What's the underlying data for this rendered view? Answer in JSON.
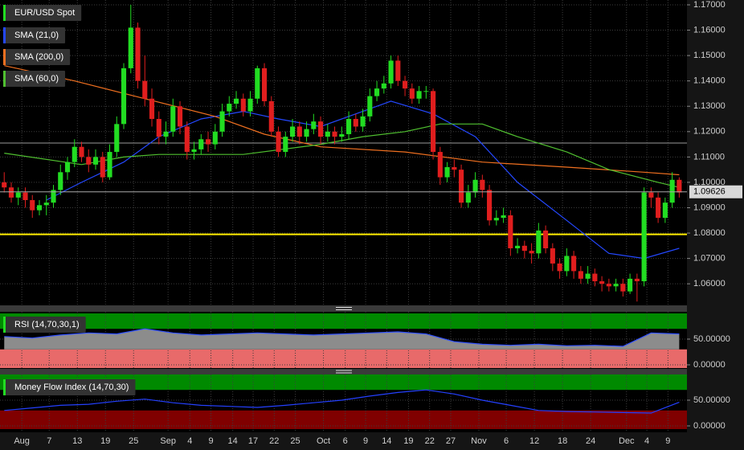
{
  "chart_data": [
    {
      "type": "candlestick",
      "name": "EUR/USD Spot",
      "color_up": "#22dd22",
      "color_down": "#e01e1e",
      "legend_color": "#22dd22",
      "xlim": [
        -0.6,
        97.1
      ],
      "xticks": [
        {
          "value": 2.5,
          "label": "Aug"
        },
        {
          "value": 6.4,
          "label": "7"
        },
        {
          "value": 10.4,
          "label": "13"
        },
        {
          "value": 14.4,
          "label": "19"
        },
        {
          "value": 18.4,
          "label": "25"
        },
        {
          "value": 23.3,
          "label": "Sep"
        },
        {
          "value": 26.4,
          "label": "4"
        },
        {
          "value": 29.4,
          "label": "9"
        },
        {
          "value": 32.5,
          "label": "14"
        },
        {
          "value": 35.4,
          "label": "17"
        },
        {
          "value": 38.4,
          "label": "22"
        },
        {
          "value": 41.4,
          "label": "25"
        },
        {
          "value": 45.4,
          "label": "Oct"
        },
        {
          "value": 48.5,
          "label": "6"
        },
        {
          "value": 51.4,
          "label": "9"
        },
        {
          "value": 54.4,
          "label": "14"
        },
        {
          "value": 57.5,
          "label": "19"
        },
        {
          "value": 60.5,
          "label": "22"
        },
        {
          "value": 63.5,
          "label": "27"
        },
        {
          "value": 67.5,
          "label": "Nov"
        },
        {
          "value": 71.4,
          "label": "6"
        },
        {
          "value": 75.4,
          "label": "12"
        },
        {
          "value": 79.4,
          "label": "18"
        },
        {
          "value": 83.4,
          "label": "24"
        },
        {
          "value": 88.5,
          "label": "Dec"
        },
        {
          "value": 91.4,
          "label": "4"
        },
        {
          "value": 94.4,
          "label": "9"
        }
      ],
      "ylim": [
        1.0515,
        1.1719
      ],
      "yticks": [
        {
          "value": 1.17,
          "label": "1.17000"
        },
        {
          "value": 1.16,
          "label": "1.16000"
        },
        {
          "value": 1.15,
          "label": "1.15000"
        },
        {
          "value": 1.14,
          "label": "1.14000"
        },
        {
          "value": 1.13,
          "label": "1.13000"
        },
        {
          "value": 1.12,
          "label": "1.12000"
        },
        {
          "value": 1.11,
          "label": "1.11000"
        },
        {
          "value": 1.1,
          "label": "1.10000"
        },
        {
          "value": 1.09,
          "label": "1.09000"
        },
        {
          "value": 1.08,
          "label": "1.08000"
        },
        {
          "value": 1.07,
          "label": "1.07000"
        },
        {
          "value": 1.06,
          "label": "1.06000"
        }
      ],
      "grid": true,
      "ohlc": [
        [
          1.1,
          1.104,
          1.096,
          1.098
        ],
        [
          1.098,
          1.1,
          1.092,
          1.094
        ],
        [
          1.094,
          1.098,
          1.091,
          1.096
        ],
        [
          1.096,
          1.098,
          1.09,
          1.093
        ],
        [
          1.093,
          1.095,
          1.086,
          1.089
        ],
        [
          1.089,
          1.093,
          1.087,
          1.091
        ],
        [
          1.091,
          1.095,
          1.087,
          1.092
        ],
        [
          1.092,
          1.099,
          1.09,
          1.097
        ],
        [
          1.097,
          1.107,
          1.095,
          1.104
        ],
        [
          1.104,
          1.11,
          1.101,
          1.108
        ],
        [
          1.108,
          1.117,
          1.106,
          1.114
        ],
        [
          1.114,
          1.116,
          1.108,
          1.11
        ],
        [
          1.11,
          1.113,
          1.104,
          1.107
        ],
        [
          1.107,
          1.113,
          1.105,
          1.11
        ],
        [
          1.11,
          1.112,
          1.1,
          1.102
        ],
        [
          1.102,
          1.115,
          1.101,
          1.112
        ],
        [
          1.112,
          1.126,
          1.11,
          1.123
        ],
        [
          1.123,
          1.147,
          1.121,
          1.145
        ],
        [
          1.145,
          1.17,
          1.143,
          1.161
        ],
        [
          1.161,
          1.163,
          1.137,
          1.14
        ],
        [
          1.14,
          1.15,
          1.13,
          1.133
        ],
        [
          1.133,
          1.137,
          1.122,
          1.125
        ],
        [
          1.125,
          1.128,
          1.115,
          1.118
        ],
        [
          1.118,
          1.124,
          1.115,
          1.12
        ],
        [
          1.12,
          1.133,
          1.118,
          1.13
        ],
        [
          1.13,
          1.132,
          1.119,
          1.122
        ],
        [
          1.122,
          1.124,
          1.109,
          1.112
        ],
        [
          1.112,
          1.116,
          1.109,
          1.113
        ],
        [
          1.113,
          1.119,
          1.111,
          1.117
        ],
        [
          1.117,
          1.12,
          1.112,
          1.115
        ],
        [
          1.115,
          1.123,
          1.113,
          1.12
        ],
        [
          1.12,
          1.131,
          1.118,
          1.128
        ],
        [
          1.128,
          1.134,
          1.126,
          1.131
        ],
        [
          1.131,
          1.136,
          1.129,
          1.133
        ],
        [
          1.133,
          1.135,
          1.126,
          1.128
        ],
        [
          1.128,
          1.136,
          1.126,
          1.133
        ],
        [
          1.133,
          1.146,
          1.131,
          1.145
        ],
        [
          1.145,
          1.147,
          1.13,
          1.132
        ],
        [
          1.132,
          1.134,
          1.118,
          1.12
        ],
        [
          1.12,
          1.122,
          1.11,
          1.112
        ],
        [
          1.112,
          1.12,
          1.11,
          1.118
        ],
        [
          1.118,
          1.125,
          1.116,
          1.122
        ],
        [
          1.122,
          1.124,
          1.115,
          1.118
        ],
        [
          1.118,
          1.124,
          1.116,
          1.121
        ],
        [
          1.121,
          1.127,
          1.119,
          1.124
        ],
        [
          1.124,
          1.126,
          1.115,
          1.118
        ],
        [
          1.118,
          1.123,
          1.116,
          1.12
        ],
        [
          1.12,
          1.122,
          1.115,
          1.118
        ],
        [
          1.118,
          1.122,
          1.116,
          1.119
        ],
        [
          1.119,
          1.128,
          1.117,
          1.125
        ],
        [
          1.125,
          1.127,
          1.12,
          1.122
        ],
        [
          1.122,
          1.129,
          1.12,
          1.126
        ],
        [
          1.126,
          1.137,
          1.124,
          1.134
        ],
        [
          1.134,
          1.14,
          1.132,
          1.137
        ],
        [
          1.137,
          1.142,
          1.135,
          1.139
        ],
        [
          1.139,
          1.15,
          1.137,
          1.148
        ],
        [
          1.148,
          1.15,
          1.138,
          1.14
        ],
        [
          1.14,
          1.142,
          1.134,
          1.137
        ],
        [
          1.137,
          1.139,
          1.131,
          1.133
        ],
        [
          1.133,
          1.138,
          1.131,
          1.136
        ],
        [
          1.136,
          1.138,
          1.133,
          1.136
        ],
        [
          1.136,
          1.137,
          1.109,
          1.112
        ],
        [
          1.112,
          1.114,
          1.099,
          1.102
        ],
        [
          1.102,
          1.108,
          1.1,
          1.106
        ],
        [
          1.106,
          1.109,
          1.102,
          1.105
        ],
        [
          1.105,
          1.107,
          1.09,
          1.092
        ],
        [
          1.092,
          1.099,
          1.09,
          1.096
        ],
        [
          1.096,
          1.104,
          1.094,
          1.101
        ],
        [
          1.101,
          1.103,
          1.094,
          1.097
        ],
        [
          1.097,
          1.099,
          1.083,
          1.085
        ],
        [
          1.085,
          1.089,
          1.083,
          1.086
        ],
        [
          1.086,
          1.09,
          1.084,
          1.087
        ],
        [
          1.087,
          1.089,
          1.071,
          1.074
        ],
        [
          1.074,
          1.078,
          1.072,
          1.075
        ],
        [
          1.075,
          1.077,
          1.07,
          1.073
        ],
        [
          1.073,
          1.076,
          1.068,
          1.072
        ],
        [
          1.072,
          1.084,
          1.07,
          1.081
        ],
        [
          1.081,
          1.083,
          1.072,
          1.074
        ],
        [
          1.074,
          1.076,
          1.065,
          1.068
        ],
        [
          1.068,
          1.07,
          1.062,
          1.065
        ],
        [
          1.065,
          1.074,
          1.063,
          1.071
        ],
        [
          1.071,
          1.073,
          1.062,
          1.065
        ],
        [
          1.065,
          1.067,
          1.06,
          1.062
        ],
        [
          1.062,
          1.067,
          1.06,
          1.064
        ],
        [
          1.064,
          1.066,
          1.059,
          1.061
        ],
        [
          1.061,
          1.063,
          1.057,
          1.06
        ],
        [
          1.06,
          1.062,
          1.057,
          1.059
        ],
        [
          1.059,
          1.062,
          1.057,
          1.06
        ],
        [
          1.06,
          1.062,
          1.055,
          1.057
        ],
        [
          1.057,
          1.064,
          1.056,
          1.062
        ],
        [
          1.062,
          1.064,
          1.053,
          1.061
        ],
        [
          1.061,
          1.098,
          1.059,
          1.096
        ],
        [
          1.096,
          1.098,
          1.09,
          1.094
        ],
        [
          1.094,
          1.096,
          1.084,
          1.086
        ],
        [
          1.086,
          1.094,
          1.084,
          1.092
        ],
        [
          1.092,
          1.104,
          1.09,
          1.101
        ],
        [
          1.101,
          1.102,
          1.094,
          1.096
        ]
      ],
      "series": [
        {
          "name": "SMA (21,0)",
          "color": "#2448ff",
          "x": [
            6,
            11,
            17,
            22,
            28,
            34,
            39,
            45,
            51,
            55,
            61,
            67,
            73,
            80,
            86,
            91,
            96
          ],
          "values": [
            1.093,
            1.1,
            1.108,
            1.118,
            1.125,
            1.128,
            1.125,
            1.122,
            1.128,
            1.132,
            1.127,
            1.118,
            1.1,
            1.085,
            1.072,
            1.07,
            1.074
          ]
        },
        {
          "name": "SMA (200,0)",
          "color": "#f07020",
          "x": [
            0,
            10,
            20,
            30,
            37,
            45,
            57,
            68,
            80,
            91,
            96
          ],
          "values": [
            1.146,
            1.14,
            1.133,
            1.126,
            1.119,
            1.114,
            1.112,
            1.108,
            1.106,
            1.104,
            1.103
          ]
        },
        {
          "name": "SMA (60,0)",
          "color": "#50c030",
          "x": [
            0,
            11,
            17,
            22,
            34,
            45,
            51,
            57,
            62,
            68,
            73,
            80,
            86,
            93,
            96
          ],
          "values": [
            1.1115,
            1.107,
            1.11,
            1.111,
            1.111,
            1.115,
            1.118,
            1.12,
            1.123,
            1.123,
            1.118,
            1.112,
            1.105,
            1.1,
            1.098
          ]
        }
      ],
      "hlines": [
        {
          "value": 1.0795,
          "color": "#ffee00"
        },
        {
          "value": 1.1155,
          "color": "#9a9a9a"
        }
      ],
      "last_price": 1.09626
    },
    {
      "type": "line",
      "name": "RSI (14,70,30,1)",
      "legend_color": "#22dd22",
      "ylim": [
        -12.5,
        100
      ],
      "yticks": [
        {
          "value": 50,
          "label": "50.00000"
        },
        {
          "value": 0,
          "label": "0.00000"
        }
      ],
      "bands": [
        {
          "from": 70,
          "to": 100,
          "color": "#008a00"
        },
        {
          "from": 0,
          "to": 30,
          "color": "#e86a6a"
        }
      ],
      "series": [
        {
          "color": "#3050ff",
          "fill": "#8c8c8c",
          "x": [
            0,
            4,
            8,
            12,
            16,
            20,
            24,
            28,
            32,
            36,
            40,
            44,
            48,
            52,
            56,
            60,
            64,
            68,
            72,
            76,
            80,
            84,
            88,
            92,
            96
          ],
          "values": [
            55,
            52,
            58,
            62,
            60,
            70,
            62,
            58,
            60,
            62,
            60,
            58,
            60,
            62,
            64,
            60,
            45,
            40,
            38,
            40,
            37,
            38,
            36,
            62,
            60
          ]
        }
      ]
    },
    {
      "type": "line",
      "name": "Money Flow Index (14,70,30)",
      "legend_color": "#22dd22",
      "ylim": [
        -12.5,
        100
      ],
      "yticks": [
        {
          "value": 50,
          "label": "50.00000"
        },
        {
          "value": 0,
          "label": "0.00000"
        }
      ],
      "bands": [
        {
          "from": 70,
          "to": 100,
          "color": "#008a00"
        },
        {
          "from": 0,
          "to": 30,
          "color": "#800000"
        }
      ],
      "series": [
        {
          "color": "#2440ff",
          "x": [
            0,
            4,
            8,
            12,
            16,
            20,
            24,
            28,
            32,
            36,
            40,
            44,
            48,
            52,
            56,
            60,
            64,
            68,
            72,
            76,
            80,
            84,
            88,
            92,
            96
          ],
          "values": [
            30,
            35,
            40,
            42,
            48,
            52,
            45,
            40,
            38,
            36,
            40,
            45,
            50,
            58,
            65,
            70,
            62,
            50,
            40,
            30,
            28,
            27,
            26,
            25,
            46
          ]
        }
      ]
    }
  ]
}
